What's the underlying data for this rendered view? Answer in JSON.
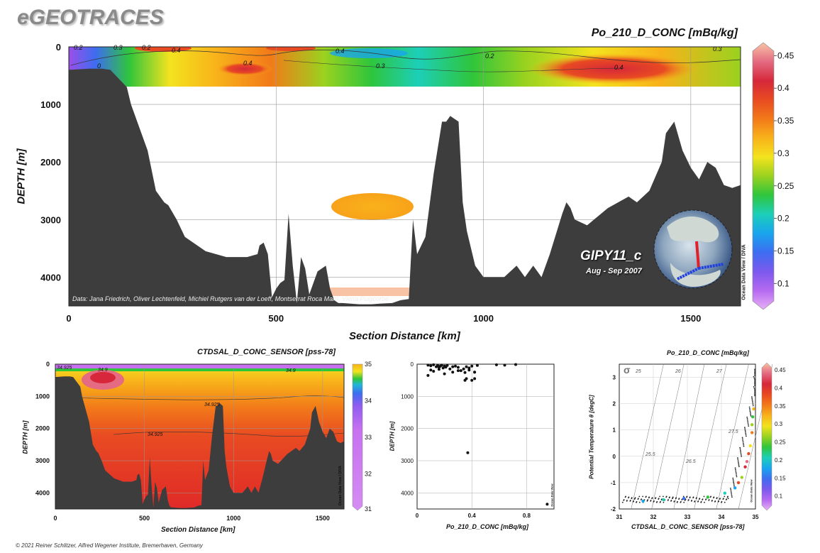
{
  "brand": "eGEOTRACES",
  "credit": "© 2021 Reiner Schlitzer, Alfred Wegener Institute, Bremerhaven, Germany",
  "main": {
    "title": "Po_210_D_CONC [mBq/kg]",
    "xlabel": "Section Distance [km]",
    "ylabel": "DEPTH [m]",
    "x_ticks": [
      "0",
      "500",
      "1000",
      "1500"
    ],
    "y_ticks": [
      "0",
      "1000",
      "2000",
      "3000",
      "4000"
    ],
    "colorbar_ticks": [
      "0.45",
      "0.4",
      "0.35",
      "0.3",
      "0.25",
      "0.2",
      "0.15",
      "0.1"
    ],
    "contour_labels": [
      "0.2",
      "0.3",
      "0.4",
      "0.4",
      "0",
      "0.4",
      "0.2",
      "0.3",
      "0.2",
      "0.4",
      "0.3"
    ],
    "cruise": "GIPY11_c",
    "dates": "Aug - Sep 2007",
    "data_credit": "Data: Jana Friedrich, Oliver Lechtenfeld, Michiel Rutgers van der Loeff, Montserrat Roca Martí, Viena Puigcorbé",
    "watermark": "Ocean Data View / DIVA"
  },
  "salinity": {
    "title": "CTDSAL_D_CONC_SENSOR [pss-78]",
    "xlabel": "Section Distance [km]",
    "ylabel": "DEPTH [m]",
    "x_ticks": [
      "0",
      "500",
      "1000",
      "1500"
    ],
    "y_ticks": [
      "0",
      "1000",
      "2000",
      "3000",
      "4000"
    ],
    "colorbar_ticks": [
      "35",
      "34",
      "33",
      "32",
      "31"
    ],
    "contour_labels": [
      "34.925",
      "34.9",
      "34.9",
      "34.925",
      "34.925"
    ],
    "watermark": "Ocean Data View / DIVA"
  },
  "scatter": {
    "xlabel": "Po_210_D_CONC [mBq/kg]",
    "ylabel": "DEPTH [m]",
    "x_ticks": [
      "0",
      "0.4",
      "0.8"
    ],
    "y_ticks": [
      "0",
      "1000",
      "2000",
      "3000",
      "4000"
    ],
    "watermark": "Ocean Data View"
  },
  "ts": {
    "title": "Po_210_D_CONC [mBq/kg]",
    "xlabel": "CTDSAL_D_CONC_SENSOR [pss-78]",
    "ylabel": "Potential Temperature θ [degC]",
    "x_ticks": [
      "31",
      "32",
      "33",
      "34",
      "35"
    ],
    "y_ticks": [
      "3",
      "2",
      "1",
      "0",
      "-1",
      "-2"
    ],
    "colorbar_ticks": [
      "0.45",
      "0.4",
      "0.35",
      "0.3",
      "0.25",
      "0.2",
      "0.15",
      "0.1"
    ],
    "sigma_symbol": "σ",
    "sigma_labels": [
      "25",
      "26",
      "27",
      "25.5",
      "26.5",
      "27.5"
    ],
    "watermark": "Ocean Data View"
  },
  "colors": {
    "bathymetry": "#3d3d3d",
    "palette": [
      "#e7b1f6",
      "#b66af0",
      "#7b59ee",
      "#3d6df0",
      "#19a5ee",
      "#1ccfb8",
      "#2fc53c",
      "#9ad21f",
      "#f3e31e",
      "#f8b21a",
      "#f27a19",
      "#e84a22",
      "#d6283a",
      "#e46b82",
      "#f8c3a4"
    ]
  },
  "chart_data": [
    {
      "type": "heatmap",
      "title": "Po_210_D_CONC [mBq/kg]",
      "xlabel": "Section Distance [km]",
      "ylabel": "DEPTH [m]",
      "xlim": [
        0,
        1620
      ],
      "ylim": [
        4500,
        0
      ],
      "colorbar_range": [
        0.06,
        0.47
      ],
      "note": "Gridded section; values concentrated in upper ~700 m plus isolated patch near 2800 m",
      "contours": [
        0,
        0.2,
        0.3,
        0.4
      ],
      "bathymetry_depth": {
        "x": [
          0,
          50,
          80,
          100,
          140,
          150,
          190,
          210,
          230,
          240,
          260,
          280,
          330,
          380,
          430,
          455,
          460,
          470,
          480,
          490,
          500,
          510,
          520,
          530,
          540,
          550,
          560,
          570,
          580,
          600,
          620,
          630,
          640,
          650,
          660,
          680,
          700,
          730,
          750,
          780,
          800,
          820,
          830,
          840,
          860,
          880,
          900,
          910,
          920,
          930,
          940,
          950,
          960,
          980,
          1000,
          1030,
          1050,
          1080,
          1100,
          1120,
          1140,
          1160,
          1190,
          1200,
          1210,
          1220,
          1250,
          1300,
          1350,
          1370,
          1400,
          1430,
          1440,
          1460,
          1480,
          1500,
          1520,
          1540,
          1560,
          1580,
          1600,
          1620
        ],
        "depth": [
          400,
          380,
          380,
          400,
          700,
          1000,
          1800,
          2500,
          2700,
          2750,
          3000,
          3300,
          3550,
          3650,
          3650,
          3600,
          3450,
          3400,
          3600,
          4350,
          4200,
          4100,
          4050,
          2900,
          3800,
          4450,
          3650,
          3850,
          4300,
          3900,
          3800,
          4200,
          4400,
          4450,
          4450,
          4460,
          4470,
          4470,
          4460,
          4450,
          4400,
          4380,
          3000,
          3600,
          3300,
          2200,
          1300,
          1300,
          1200,
          1250,
          1300,
          2700,
          3200,
          3800,
          4000,
          4000,
          4000,
          3800,
          4000,
          3800,
          4000,
          3600,
          2900,
          2700,
          2800,
          3000,
          3100,
          2800,
          2600,
          2700,
          2500,
          2000,
          1500,
          1300,
          1800,
          2100,
          2300,
          2000,
          2100,
          2400,
          2450,
          2400
        ]
      }
    },
    {
      "type": "heatmap",
      "title": "CTDSAL_D_CONC_SENSOR [pss-78]",
      "xlabel": "Section Distance [km]",
      "ylabel": "DEPTH [m]",
      "xlim": [
        0,
        1620
      ],
      "ylim": [
        4500,
        0
      ],
      "colorbar_range": [
        31,
        35
      ],
      "contours": [
        34.8,
        34.9,
        34.925
      ]
    },
    {
      "type": "scatter",
      "xlabel": "Po_210_D_CONC [mBq/kg]",
      "ylabel": "DEPTH [m]",
      "xlim": [
        0,
        1.0
      ],
      "ylim": [
        4500,
        0
      ],
      "x": [
        0.08,
        0.1,
        0.12,
        0.14,
        0.15,
        0.16,
        0.17,
        0.18,
        0.19,
        0.2,
        0.21,
        0.22,
        0.24,
        0.26,
        0.28,
        0.3,
        0.32,
        0.34,
        0.36,
        0.38,
        0.4,
        0.42,
        0.44,
        0.58,
        0.64,
        0.72,
        0.1,
        0.12,
        0.16,
        0.2,
        0.26,
        0.3,
        0.35,
        0.38,
        0.42,
        0.36,
        0.42,
        0.08,
        0.35,
        0.4,
        0.37,
        0.95
      ],
      "y": [
        30,
        50,
        20,
        80,
        40,
        100,
        60,
        30,
        120,
        60,
        90,
        40,
        150,
        80,
        60,
        100,
        200,
        150,
        80,
        120,
        60,
        250,
        40,
        20,
        30,
        10,
        180,
        220,
        160,
        300,
        250,
        200,
        260,
        180,
        250,
        450,
        450,
        350,
        500,
        500,
        2750,
        4350
      ]
    },
    {
      "type": "scatter",
      "title": "Po_210_D_CONC [mBq/kg]",
      "xlabel": "CTDSAL_D_CONC_SENSOR [pss-78]",
      "ylabel": "Potential Temperature θ [degC]",
      "xlim": [
        31,
        35
      ],
      "ylim": [
        -2,
        3.5
      ],
      "sigma_isopycnals": [
        25,
        25.5,
        26,
        26.5,
        27,
        27.5
      ],
      "colorbar_range": [
        0.06,
        0.47
      ],
      "note": "Colored points are Po-210 samples; many small black points are the full CTD profile"
    }
  ]
}
